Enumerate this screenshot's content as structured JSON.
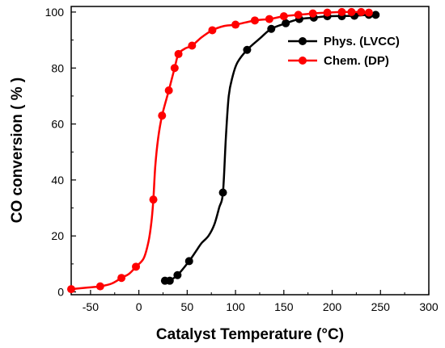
{
  "chart_data": {
    "type": "line",
    "title": "",
    "xlabel": "Catalyst Temperature (°C)",
    "ylabel": "CO conversion ( % )",
    "xlim": [
      -70,
      300
    ],
    "ylim": [
      -1,
      102
    ],
    "x_ticks": [
      -50,
      0,
      50,
      100,
      150,
      200,
      250,
      300
    ],
    "x_tick_labels": [
      "-50",
      "0",
      "50",
      "100",
      "150",
      "200",
      "250",
      "300"
    ],
    "y_ticks": [
      0,
      20,
      40,
      60,
      80,
      100
    ],
    "y_tick_labels": [
      "0",
      "20",
      "40",
      "60",
      "80",
      "100"
    ],
    "grid": false,
    "legend_position": "top-right",
    "series": [
      {
        "name": "Phys. (LVCC)",
        "color": "#000000",
        "marker": "circle",
        "points": [
          [
            27,
            4
          ],
          [
            32,
            4
          ],
          [
            40,
            6
          ],
          [
            52,
            11
          ],
          [
            87,
            35.5
          ],
          [
            112,
            86.5
          ],
          [
            137,
            94
          ],
          [
            152,
            96
          ],
          [
            166,
            97.5
          ],
          [
            181,
            98
          ],
          [
            195,
            98.5
          ],
          [
            210,
            98.5
          ],
          [
            223,
            98.7
          ],
          [
            238,
            99
          ],
          [
            245,
            99
          ]
        ],
        "curve": [
          [
            27,
            4
          ],
          [
            32,
            4.2
          ],
          [
            40,
            6
          ],
          [
            52,
            11
          ],
          [
            60,
            15
          ],
          [
            65,
            17.5
          ],
          [
            72,
            20
          ],
          [
            78,
            24
          ],
          [
            83,
            30
          ],
          [
            87,
            35.5
          ],
          [
            90,
            55
          ],
          [
            93,
            70
          ],
          [
            97,
            77
          ],
          [
            102,
            82
          ],
          [
            112,
            86.5
          ],
          [
            125,
            90.5
          ],
          [
            137,
            94
          ],
          [
            152,
            96
          ],
          [
            166,
            97.5
          ],
          [
            181,
            98
          ],
          [
            195,
            98.5
          ],
          [
            210,
            98.6
          ],
          [
            223,
            98.7
          ],
          [
            238,
            99
          ],
          [
            245,
            99
          ]
        ]
      },
      {
        "name": "Chem. (DP)",
        "color": "#ff0000",
        "marker": "circle",
        "points": [
          [
            -70,
            1
          ],
          [
            -40,
            2
          ],
          [
            -18,
            5
          ],
          [
            -3,
            9
          ],
          [
            15,
            33
          ],
          [
            24,
            63
          ],
          [
            31,
            72
          ],
          [
            37,
            80
          ],
          [
            41,
            85
          ],
          [
            55,
            88
          ],
          [
            76,
            93.5
          ],
          [
            100,
            95.5
          ],
          [
            120,
            97
          ],
          [
            135,
            97.5
          ],
          [
            150,
            98.5
          ],
          [
            165,
            99
          ],
          [
            180,
            99.5
          ],
          [
            195,
            99.8
          ],
          [
            210,
            100
          ],
          [
            220,
            100
          ],
          [
            230,
            100
          ],
          [
            238,
            99.8
          ]
        ],
        "curve": [
          [
            -70,
            1
          ],
          [
            -55,
            1.5
          ],
          [
            -40,
            2
          ],
          [
            -28,
            3
          ],
          [
            -18,
            5
          ],
          [
            -10,
            6.5
          ],
          [
            -3,
            9
          ],
          [
            5,
            12
          ],
          [
            10,
            18
          ],
          [
            13,
            25
          ],
          [
            15,
            33
          ],
          [
            17,
            45
          ],
          [
            20,
            55
          ],
          [
            24,
            63
          ],
          [
            31,
            72
          ],
          [
            37,
            80
          ],
          [
            41,
            85
          ],
          [
            48,
            87
          ],
          [
            55,
            88
          ],
          [
            65,
            91
          ],
          [
            76,
            93.5
          ],
          [
            88,
            95
          ],
          [
            100,
            95.5
          ],
          [
            120,
            97
          ],
          [
            135,
            97.5
          ],
          [
            150,
            98.5
          ],
          [
            165,
            99
          ],
          [
            180,
            99.5
          ],
          [
            195,
            99.8
          ],
          [
            210,
            100
          ],
          [
            220,
            100
          ],
          [
            230,
            100
          ],
          [
            238,
            99.8
          ]
        ]
      }
    ]
  }
}
